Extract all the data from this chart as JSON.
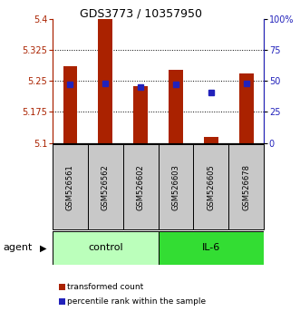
{
  "title": "GDS3773 / 10357950",
  "categories": [
    "GSM526561",
    "GSM526562",
    "GSM526602",
    "GSM526603",
    "GSM526605",
    "GSM526678"
  ],
  "groups": [
    "control",
    "control",
    "control",
    "IL-6",
    "IL-6",
    "IL-6"
  ],
  "red_values": [
    5.285,
    5.4,
    5.237,
    5.278,
    5.115,
    5.268
  ],
  "blue_values_pct": [
    47,
    48,
    45,
    47,
    41,
    48
  ],
  "y_min": 5.1,
  "y_max": 5.4,
  "y_ticks_left": [
    5.1,
    5.175,
    5.25,
    5.325,
    5.4
  ],
  "y_ticks_right": [
    0,
    25,
    50,
    75,
    100
  ],
  "y_ticks_right_labels": [
    "0",
    "25",
    "50",
    "75",
    "100%"
  ],
  "grid_lines": [
    5.175,
    5.25,
    5.325
  ],
  "bar_color": "#AA2200",
  "blue_color": "#2222BB",
  "control_color": "#BBFFBB",
  "il6_color": "#33DD33",
  "sample_bg_color": "#C8C8C8",
  "baseline": 5.1,
  "legend_red": "transformed count",
  "legend_blue": "percentile rank within the sample",
  "agent_label": "agent",
  "control_label": "control",
  "il6_label": "IL-6",
  "bar_width": 0.4
}
